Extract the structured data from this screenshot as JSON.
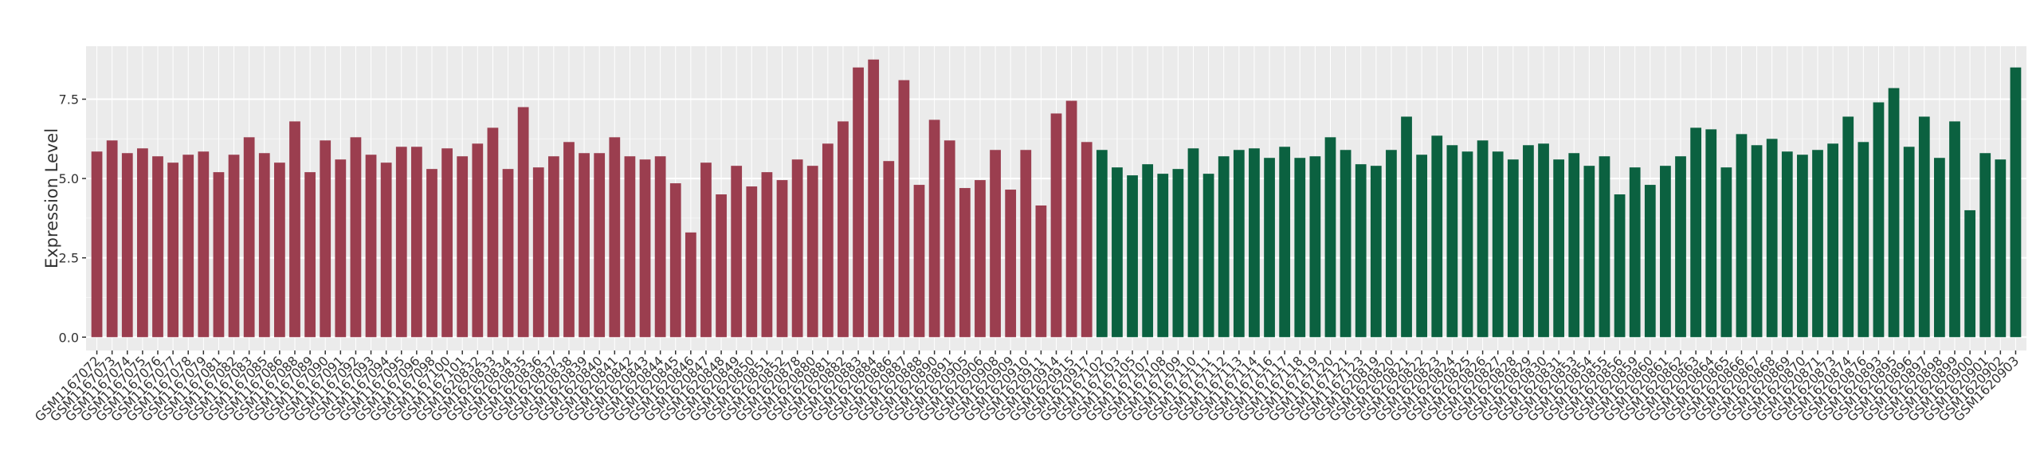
{
  "chart_data": {
    "type": "bar",
    "y_label": "Expression Level",
    "ylim": [
      -0.42,
      9.17
    ],
    "yticks": [
      {
        "value": 0,
        "label": "0.0"
      },
      2.5,
      {
        "value": 5,
        "label": "5.0"
      },
      7.5
    ],
    "grid": true,
    "series": [
      {
        "color": "#9b3e4f",
        "categories": [
          "GSM1167072",
          "GSM1167073",
          "GSM1167074",
          "GSM1167075",
          "GSM1167076",
          "GSM1167077",
          "GSM1167078",
          "GSM1167079",
          "GSM1167081",
          "GSM1167082",
          "GSM1167083",
          "GSM1167085",
          "GSM1167086",
          "GSM1167088",
          "GSM1167089",
          "GSM1167090",
          "GSM1167091",
          "GSM1167092",
          "GSM1167093",
          "GSM1167094",
          "GSM1167095",
          "GSM1167096",
          "GSM1167098",
          "GSM1167100",
          "GSM1167101",
          "GSM1620832",
          "GSM1620833",
          "GSM1620834",
          "GSM1620835",
          "GSM1620836",
          "GSM1620837",
          "GSM1620838",
          "GSM1620839",
          "GSM1620840",
          "GSM1620841",
          "GSM1620842",
          "GSM1620843",
          "GSM1620844",
          "GSM1620845",
          "GSM1620846",
          "GSM1620847",
          "GSM1620848",
          "GSM1620849",
          "GSM1620850",
          "GSM1620851",
          "GSM1620852",
          "GSM1620878",
          "GSM1620880",
          "GSM1620881",
          "GSM1620882",
          "GSM1620883",
          "GSM1620884",
          "GSM1620886",
          "GSM1620887",
          "GSM1620888",
          "GSM1620890",
          "GSM1620891",
          "GSM1620905",
          "GSM1620906",
          "GSM1620908",
          "GSM1620909",
          "GSM1620910",
          "GSM1620911",
          "GSM1620914",
          "GSM1620915",
          "GSM1620917"
        ],
        "values": [
          5.85,
          6.2,
          5.8,
          5.95,
          5.7,
          5.5,
          5.75,
          5.85,
          5.2,
          5.75,
          6.3,
          5.8,
          5.5,
          6.8,
          5.2,
          6.2,
          5.6,
          6.3,
          5.75,
          5.5,
          6.0,
          6.0,
          5.3,
          5.95,
          5.7,
          6.1,
          6.6,
          5.3,
          7.25,
          5.35,
          5.7,
          6.15,
          5.8,
          5.8,
          6.3,
          5.7,
          5.6,
          5.7,
          4.85,
          3.3,
          5.5,
          4.5,
          5.4,
          4.75,
          5.2,
          4.95,
          5.6,
          5.4,
          6.1,
          6.8,
          8.5,
          8.75,
          5.55,
          8.1,
          4.8,
          6.85,
          6.2,
          4.7,
          4.95,
          5.9,
          4.65,
          5.9,
          4.15,
          7.05,
          7.45,
          6.15
        ]
      },
      {
        "color": "#0b6140",
        "categories": [
          "GSM1167102",
          "GSM1167103",
          "GSM1167105",
          "GSM1167107",
          "GSM1167108",
          "GSM1167109",
          "GSM1167110",
          "GSM1167111",
          "GSM1167112",
          "GSM1167113",
          "GSM1167114",
          "GSM1167116",
          "GSM1167117",
          "GSM1167118",
          "GSM1167119",
          "GSM1167120",
          "GSM1167121",
          "GSM1167123",
          "GSM1620819",
          "GSM1620820",
          "GSM1620821",
          "GSM1620822",
          "GSM1620823",
          "GSM1620824",
          "GSM1620825",
          "GSM1620826",
          "GSM1620827",
          "GSM1620828",
          "GSM1620829",
          "GSM1620830",
          "GSM1620831",
          "GSM1620853",
          "GSM1620854",
          "GSM1620855",
          "GSM1620856",
          "GSM1620859",
          "GSM1620860",
          "GSM1620861",
          "GSM1620862",
          "GSM1620863",
          "GSM1620864",
          "GSM1620865",
          "GSM1620866",
          "GSM1620867",
          "GSM1620868",
          "GSM1620869",
          "GSM1620870",
          "GSM1620871",
          "GSM1620873",
          "GSM1620874",
          "GSM1620876",
          "GSM1620893",
          "GSM1620895",
          "GSM1620896",
          "GSM1620897",
          "GSM1620898",
          "GSM1620899",
          "GSM1620900",
          "GSM1620901",
          "GSM1620902",
          "GSM1620903"
        ],
        "values": [
          5.9,
          5.35,
          5.1,
          5.45,
          5.15,
          5.3,
          5.95,
          5.15,
          5.7,
          5.9,
          5.95,
          5.65,
          6.0,
          5.65,
          5.7,
          6.3,
          5.9,
          5.45,
          5.4,
          5.9,
          6.95,
          5.75,
          6.35,
          6.05,
          5.85,
          6.2,
          5.85,
          5.6,
          6.05,
          6.1,
          5.6,
          5.8,
          5.4,
          5.7,
          4.5,
          5.35,
          4.8,
          5.4,
          5.7,
          6.6,
          6.55,
          5.35,
          6.4,
          6.05,
          6.25,
          5.85,
          5.75,
          5.9,
          6.1,
          6.95,
          6.15,
          7.4,
          7.85,
          6.0,
          6.95,
          5.65,
          6.8,
          4.0,
          5.8,
          5.6,
          8.5
        ]
      }
    ]
  }
}
